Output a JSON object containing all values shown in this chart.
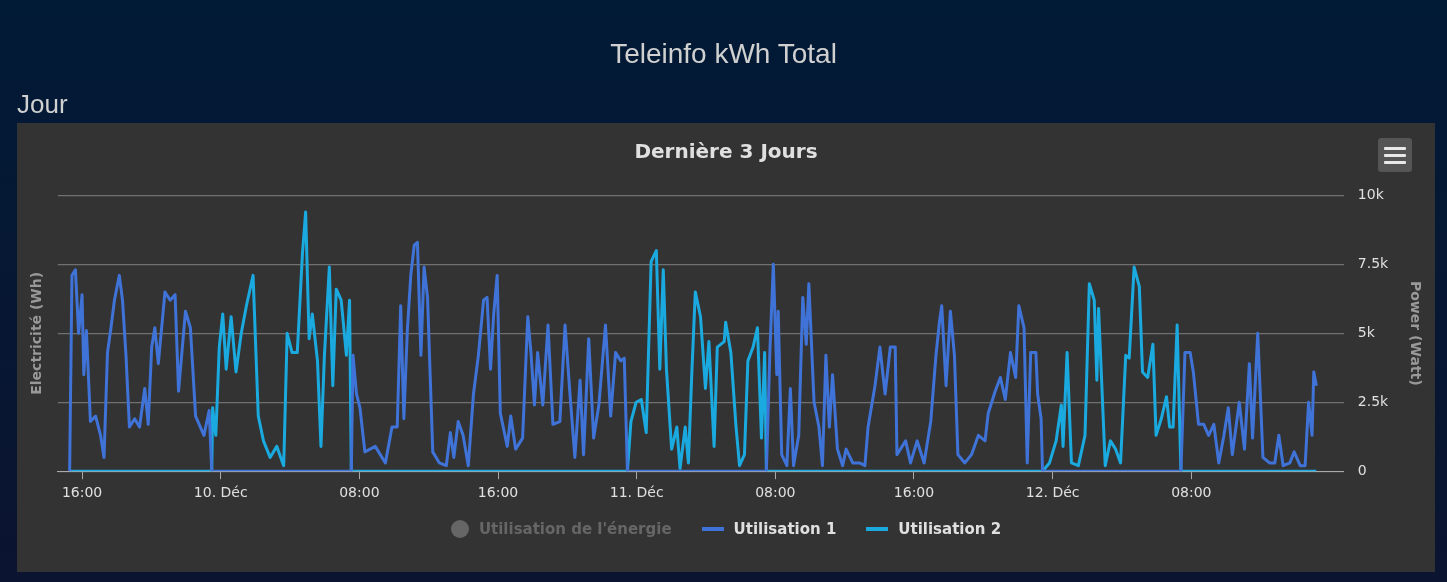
{
  "chart_data": {
    "type": "line",
    "title": "Teleinfo kWh Total",
    "subtitle": "Jour",
    "annotations": [
      "Dernière 3 Jours"
    ],
    "ylabel": "Electricité (Wh)",
    "y2label": "Power (Watt)",
    "xlim": [
      "--12-09T14:36",
      "--12-12T16:48"
    ],
    "xticks": [
      {
        "value": "--12-09T16:00",
        "label": "16:00"
      },
      {
        "value": "--12-10",
        "label": "10. Déc"
      },
      {
        "value": "--12-10T08:00",
        "label": "08:00"
      },
      {
        "value": "--12-10T16:00",
        "label": "16:00"
      },
      {
        "value": "--12-11",
        "label": "11. Déc"
      },
      {
        "value": "--12-11T08:00",
        "label": "08:00"
      },
      {
        "value": "--12-11T16:00",
        "label": "16:00"
      },
      {
        "value": "--12-12",
        "label": "12. Déc"
      },
      {
        "value": "--12-12T08:00",
        "label": "08:00"
      }
    ],
    "y2lim": [
      0,
      10000
    ],
    "y2ticks": [
      0,
      {
        "value": 2500,
        "label": "2.5k"
      },
      {
        "value": 5000,
        "label": "5k"
      },
      {
        "value": 7500,
        "label": "7.5k"
      },
      {
        "value": 10000,
        "label": "10k"
      }
    ],
    "grid": "y",
    "legend": "bottom",
    "marker": "none",
    "series": [
      {
        "name": "Utilisation de l'énergie",
        "color": "#666666",
        "axis": "y",
        "marker": "circle"
      },
      {
        "name": "Utilisation 1",
        "color": "#3f73d8",
        "axis": "y2",
        "x": [
          "--12-09T15:17",
          "--12-09T15:25",
          "--12-09T15:37",
          "--12-09T15:48",
          "--12-09T16:00",
          "--12-09T16:06",
          "--12-09T16:15",
          "--12-09T16:29",
          "--12-09T16:47",
          "--12-09T17:04",
          "--12-09T17:16",
          "--12-09T17:28",
          "--12-09T17:40",
          "--12-09T17:52",
          "--12-09T18:09",
          "--12-09T18:20",
          "--12-09T18:32",
          "--12-09T18:44",
          "--12-09T19:02",
          "--12-09T19:19",
          "--12-09T19:37",
          "--12-09T19:49",
          "--12-09T20:01",
          "--12-09T20:12",
          "--12-09T20:24",
          "--12-09T20:47",
          "--12-09T21:05",
          "--12-09T21:22",
          "--12-09T21:34",
          "--12-09T21:58",
          "--12-09T22:15",
          "--12-09T22:33",
          "--12-09T23:02",
          "--12-09T23:20",
          "--12-09T23:29",
          "--12-10T07:32",
          "--12-10T07:38",
          "--12-10T07:50",
          "--12-10T08:02",
          "--12-10T08:19",
          "--12-10T08:55",
          "--12-10T09:30",
          "--12-10T09:53",
          "--12-10T10:11",
          "--12-10T10:23",
          "--12-10T10:34",
          "--12-10T10:46",
          "--12-10T10:58",
          "--12-10T11:10",
          "--12-10T11:21",
          "--12-10T11:33",
          "--12-10T11:44",
          "--12-10T11:56",
          "--12-10T12:14",
          "--12-10T12:37",
          "--12-10T13:01",
          "--12-10T13:15",
          "--12-10T13:27",
          "--12-10T13:42",
          "--12-10T13:59",
          "--12-10T14:17",
          "--12-10T14:35",
          "--12-10T14:52",
          "--12-10T15:10",
          "--12-10T15:22",
          "--12-10T15:34",
          "--12-10T15:45",
          "--12-10T15:57",
          "--12-10T16:08",
          "--12-10T16:32",
          "--12-10T16:44",
          "--12-10T17:01",
          "--12-10T17:25",
          "--12-10T17:43",
          "--12-10T17:54",
          "--12-10T18:06",
          "--12-10T18:17",
          "--12-10T18:35",
          "--12-10T18:53",
          "--12-10T19:10",
          "--12-10T19:34",
          "--12-10T19:52",
          "--12-10T20:09",
          "--12-10T20:26",
          "--12-10T20:44",
          "--12-10T20:56",
          "--12-10T21:14",
          "--12-10T21:31",
          "--12-10T21:49",
          "--12-10T22:12",
          "--12-10T22:30",
          "--12-10T22:47",
          "--12-10T23:05",
          "--12-10T23:17",
          "--12-10T23:28",
          "--12-11T07:29",
          "--12-11T07:41",
          "--12-11T07:53",
          "--12-11T08:05",
          "--12-11T08:10",
          "--12-11T08:22",
          "--12-11T08:40",
          "--12-11T08:52",
          "--12-11T09:03",
          "--12-11T09:21",
          "--12-11T09:35",
          "--12-11T09:47",
          "--12-11T09:56",
          "--12-11T10:14",
          "--12-11T10:31",
          "--12-11T10:43",
          "--12-11T10:55",
          "--12-11T11:07",
          "--12-11T11:18",
          "--12-11T11:35",
          "--12-11T11:53",
          "--12-11T12:05",
          "--12-11T12:28",
          "--12-11T12:52",
          "--12-11T13:10",
          "--12-11T13:21",
          "--12-11T13:45",
          "--12-11T14:02",
          "--12-11T14:20",
          "--12-11T14:38",
          "--12-11T14:55",
          "--12-11T15:01",
          "--12-11T15:31",
          "--12-11T15:48",
          "--12-11T16:11",
          "--12-11T16:35",
          "--12-11T16:58",
          "--12-11T17:16",
          "--12-11T17:28",
          "--12-11T17:36",
          "--12-11T17:51",
          "--12-11T18:06",
          "--12-11T18:20",
          "--12-11T18:32",
          "--12-11T18:56",
          "--12-11T19:19",
          "--12-11T19:43",
          "--12-11T20:06",
          "--12-11T20:17",
          "--12-11T20:41",
          "--12-11T20:59",
          "--12-11T21:16",
          "--12-11T21:34",
          "--12-11T21:52",
          "--12-11T22:03",
          "--12-11T22:21",
          "--12-11T22:32",
          "--12-11T22:44",
          "--12-11T23:02",
          "--12-11T23:08",
          "--12-11T23:20",
          "--12-11T23:25",
          "--12-12T07:24",
          "--12-12T07:38",
          "--12-12T07:56",
          "--12-12T08:07",
          "--12-12T08:25",
          "--12-12T08:43",
          "--12-12T09:00",
          "--12-12T09:18",
          "--12-12T09:35",
          "--12-12T09:53",
          "--12-12T10:08",
          "--12-12T10:22",
          "--12-12T10:46",
          "--12-12T11:04",
          "--12-12T11:21",
          "--12-12T11:32",
          "--12-12T11:50",
          "--12-12T12:08",
          "--12-12T12:31",
          "--12-12T12:49",
          "--12-12T13:03",
          "--12-12T13:18",
          "--12-12T13:41",
          "--12-12T13:56",
          "--12-12T14:17",
          "--12-12T14:34",
          "--12-12T14:46",
          "--12-12T14:58",
          "--12-12T15:04",
          "--12-12T15:13"
        ],
        "values": [
          0,
          7100,
          7300,
          5000,
          6400,
          3500,
          5100,
          1800,
          2000,
          1300,
          500,
          4300,
          5200,
          6200,
          7100,
          6200,
          4200,
          1600,
          1900,
          1600,
          3000,
          1700,
          4500,
          5200,
          3900,
          6500,
          6200,
          6400,
          2900,
          5800,
          5200,
          2000,
          1300,
          2200,
          0,
          0,
          4200,
          2800,
          2300,
          700,
          900,
          300,
          1600,
          1600,
          6000,
          1900,
          5100,
          7100,
          8200,
          8300,
          4200,
          7400,
          6300,
          700,
          300,
          200,
          1400,
          500,
          1800,
          1300,
          200,
          2800,
          4200,
          6200,
          6300,
          3700,
          5700,
          7100,
          2100,
          900,
          2000,
          800,
          1200,
          5600,
          4300,
          2400,
          4300,
          2400,
          5300,
          1700,
          1800,
          5300,
          2800,
          500,
          3300,
          600,
          4800,
          1200,
          2400,
          5300,
          2000,
          4300,
          4000,
          4100,
          0,
          0,
          4300,
          7500,
          3500,
          5800,
          600,
          200,
          3000,
          200,
          1300,
          6300,
          4600,
          6800,
          2500,
          1600,
          200,
          4200,
          1600,
          3500,
          800,
          200,
          800,
          300,
          300,
          200,
          1600,
          3100,
          4500,
          2800,
          4500,
          4500,
          600,
          1100,
          300,
          1100,
          300,
          1800,
          4200,
          5400,
          6000,
          3100,
          5800,
          4200,
          600,
          300,
          600,
          1300,
          1100,
          2100,
          2900,
          3400,
          2600,
          4300,
          3400,
          6000,
          5200,
          300,
          4300,
          4300,
          2800,
          1900,
          0,
          0,
          4300,
          4300,
          3600,
          1700,
          1700,
          1300,
          1700,
          300,
          1300,
          2300,
          600,
          2500,
          800,
          3900,
          1200,
          5000,
          500,
          300,
          300,
          1300,
          200,
          300,
          700,
          200,
          200,
          2500,
          1300,
          3600,
          3100
        ]
      },
      {
        "name": "Utilisation 2",
        "color": "#1aaadf",
        "axis": "y2",
        "x": [
          "--12-09T15:17",
          "--12-09T23:29",
          "--12-09T23:32",
          "--12-09T23:43",
          "--12-09T23:55",
          "--12-10T00:07",
          "--12-10T00:19",
          "--12-10T00:36",
          "--12-10T00:53",
          "--12-10T01:11",
          "--12-10T01:29",
          "--12-10T01:52",
          "--12-10T02:10",
          "--12-10T02:28",
          "--12-10T02:51",
          "--12-10T03:14",
          "--12-10T03:38",
          "--12-10T03:50",
          "--12-10T04:07",
          "--12-10T04:25",
          "--12-10T04:43",
          "--12-10T04:54",
          "--12-10T05:06",
          "--12-10T05:17",
          "--12-10T05:35",
          "--12-10T05:47",
          "--12-10T05:59",
          "--12-10T06:16",
          "--12-10T06:28",
          "--12-10T06:40",
          "--12-10T06:57",
          "--12-10T07:15",
          "--12-10T07:26",
          "--12-10T07:32",
          "--12-10T23:28",
          "--12-10T23:40",
          "--12-10T23:58",
          "--12-11T00:16",
          "--12-11T00:33",
          "--12-11T00:50",
          "--12-11T01:08",
          "--12-11T01:20",
          "--12-11T01:32",
          "--12-11T01:43",
          "--12-11T02:01",
          "--12-11T02:19",
          "--12-11T02:30",
          "--12-11T02:48",
          "--12-11T02:59",
          "--12-11T03:11",
          "--12-11T03:23",
          "--12-11T03:41",
          "--12-11T03:58",
          "--12-11T04:10",
          "--12-11T04:28",
          "--12-11T04:39",
          "--12-11T05:03",
          "--12-11T05:08",
          "--12-11T05:26",
          "--12-11T05:44",
          "--12-11T05:56",
          "--12-11T06:13",
          "--12-11T06:25",
          "--12-11T06:43",
          "--12-11T06:58",
          "--12-11T07:12",
          "--12-11T07:23",
          "--12-11T07:29",
          "--12-11T23:25",
          "--12-11T23:49",
          "--12-12T00:12",
          "--12-12T00:30",
          "--12-12T00:36",
          "--12-12T00:50",
          "--12-12T01:05",
          "--12-12T01:29",
          "--12-12T01:52",
          "--12-12T02:07",
          "--12-12T02:24",
          "--12-12T02:33",
          "--12-12T02:39",
          "--12-12T03:02",
          "--12-12T03:20",
          "--12-12T03:38",
          "--12-12T03:55",
          "--12-12T04:13",
          "--12-12T04:25",
          "--12-12T04:42",
          "--12-12T05:00",
          "--12-12T05:11",
          "--12-12T05:29",
          "--12-12T05:47",
          "--12-12T05:58",
          "--12-12T06:16",
          "--12-12T06:34",
          "--12-12T06:45",
          "--12-12T06:57",
          "--12-12T07:11",
          "--12-12T07:24",
          "--12-12T15:13"
        ],
        "values": [
          0,
          0,
          2300,
          1300,
          4500,
          5700,
          3700,
          5600,
          3600,
          5000,
          6000,
          7100,
          2000,
          1100,
          500,
          900,
          200,
          5000,
          4300,
          4300,
          7900,
          9400,
          4800,
          5700,
          4000,
          900,
          4200,
          7400,
          3100,
          6600,
          6200,
          4200,
          6200,
          0,
          0,
          1800,
          2500,
          2600,
          1400,
          7600,
          8000,
          3700,
          7300,
          3700,
          800,
          1600,
          100,
          1600,
          300,
          3600,
          6500,
          5600,
          3000,
          4700,
          900,
          4500,
          4700,
          5400,
          4300,
          1600,
          200,
          600,
          4000,
          4500,
          5200,
          1200,
          4300,
          0,
          0,
          300,
          1100,
          2400,
          900,
          4300,
          300,
          200,
          1300,
          6800,
          6200,
          3300,
          5900,
          200,
          1100,
          800,
          300,
          4200,
          4100,
          7400,
          6700,
          3600,
          3400,
          4600,
          1300,
          1900,
          2700,
          1600,
          1600,
          5300,
          0,
          0
        ]
      }
    ]
  }
}
